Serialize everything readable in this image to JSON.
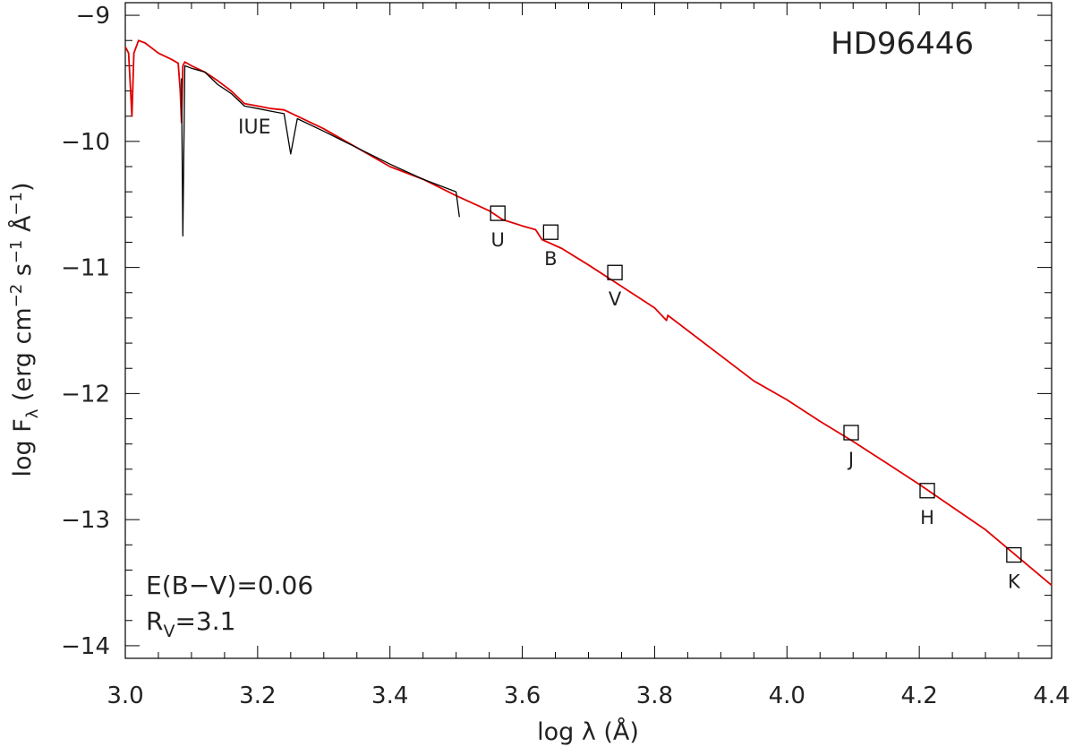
{
  "chart_data": {
    "type": "line",
    "title": "HD96446",
    "xlabel": "log λ (Å)",
    "ylabel": "log F_λ (erg cm^-2 s^-1 Å^-1)",
    "xlim": [
      3.0,
      4.4
    ],
    "ylim": [
      -14.1,
      -8.9
    ],
    "xticks": [
      3.0,
      3.2,
      3.4,
      3.6,
      3.8,
      4.0,
      4.2,
      4.4
    ],
    "xtick_labels": [
      "3.0",
      "3.2",
      "3.4",
      "3.6",
      "3.8",
      "4.0",
      "4.2",
      "4.4"
    ],
    "yticks": [
      -9,
      -10,
      -11,
      -12,
      -13,
      -14
    ],
    "ytick_labels": [
      "−9",
      "−10",
      "−11",
      "−12",
      "−13",
      "−14"
    ],
    "grid": false,
    "series": [
      {
        "color": "#e00000",
        "x": [
          3.0,
          3.005,
          3.01,
          3.013,
          3.02,
          3.03,
          3.05,
          3.07,
          3.08,
          3.083,
          3.085,
          3.087,
          3.09,
          3.1,
          3.12,
          3.14,
          3.16,
          3.18,
          3.2,
          3.22,
          3.24,
          3.26,
          3.3,
          3.35,
          3.4,
          3.45,
          3.5,
          3.55,
          3.57,
          3.6,
          3.62,
          3.63,
          3.66,
          3.7,
          3.75,
          3.8,
          3.818,
          3.82,
          3.85,
          3.9,
          3.95,
          4.0,
          4.05,
          4.1,
          4.15,
          4.2,
          4.25,
          4.3,
          4.35,
          4.4
        ],
        "y": [
          -9.25,
          -9.3,
          -9.8,
          -9.3,
          -9.2,
          -9.22,
          -9.3,
          -9.35,
          -9.38,
          -9.6,
          -9.85,
          -9.4,
          -9.37,
          -9.4,
          -9.45,
          -9.52,
          -9.6,
          -9.7,
          -9.72,
          -9.74,
          -9.75,
          -9.8,
          -9.9,
          -10.05,
          -10.2,
          -10.3,
          -10.43,
          -10.55,
          -10.62,
          -10.67,
          -10.7,
          -10.78,
          -10.85,
          -10.98,
          -11.15,
          -11.32,
          -11.42,
          -11.38,
          -11.5,
          -11.7,
          -11.9,
          -12.05,
          -12.22,
          -12.38,
          -12.55,
          -12.72,
          -12.9,
          -13.08,
          -13.3,
          -13.52
        ]
      },
      {
        "color": "#000000",
        "x": [
          3.085,
          3.087,
          3.09,
          3.1,
          3.12,
          3.14,
          3.16,
          3.18,
          3.2,
          3.22,
          3.24,
          3.25,
          3.26,
          3.3,
          3.35,
          3.4,
          3.45,
          3.5,
          3.505
        ],
        "y": [
          -9.5,
          -10.75,
          -9.4,
          -9.42,
          -9.45,
          -9.55,
          -9.62,
          -9.72,
          -9.74,
          -9.76,
          -9.78,
          -10.1,
          -9.82,
          -9.92,
          -10.05,
          -10.18,
          -10.3,
          -10.4,
          -10.6
        ]
      }
    ],
    "points": [
      {
        "label": "U",
        "x": 3.563,
        "y": -10.57
      },
      {
        "label": "B",
        "x": 3.643,
        "y": -10.72
      },
      {
        "label": "V",
        "x": 3.74,
        "y": -11.04
      },
      {
        "label": "J",
        "x": 4.097,
        "y": -12.31
      },
      {
        "label": "H",
        "x": 4.212,
        "y": -12.77
      },
      {
        "label": "K",
        "x": 4.343,
        "y": -13.28
      }
    ],
    "annotations": {
      "iue": "IUE",
      "ebv": "E(B−V)=0.06",
      "rv_main": "R",
      "rv_sub": "V",
      "rv_value": "=3.1"
    }
  }
}
